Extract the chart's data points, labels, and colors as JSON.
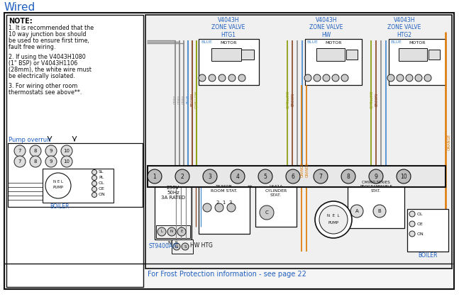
{
  "title": "Wired",
  "title_color": "#2060c0",
  "bg": "#ffffff",
  "border_color": "#222222",
  "note_lines": [
    [
      "NOTE:",
      true
    ],
    [
      "1. It is recommended that the",
      false
    ],
    [
      "10 way junction box should",
      false
    ],
    [
      "be used to ensure first time,",
      false
    ],
    [
      "fault free wiring.",
      false
    ],
    [
      "",
      false
    ],
    [
      "2. If using the V4043H1080",
      false
    ],
    [
      "(1\" BSP) or V4043H1106",
      false
    ],
    [
      "(28mm), the white wire must",
      false
    ],
    [
      "be electrically isolated.",
      false
    ],
    [
      "",
      false
    ],
    [
      "3. For wiring other room",
      false
    ],
    [
      "thermostats see above**.",
      false
    ]
  ],
  "footer": "For Frost Protection information - see page 22",
  "footer_color": "#2060c0",
  "grey": "#888888",
  "blue": "#4488cc",
  "brown": "#884422",
  "gyellow": "#889900",
  "orange": "#dd7700",
  "black": "#111111",
  "red": "#cc2222",
  "label_blue": "#2060c0"
}
